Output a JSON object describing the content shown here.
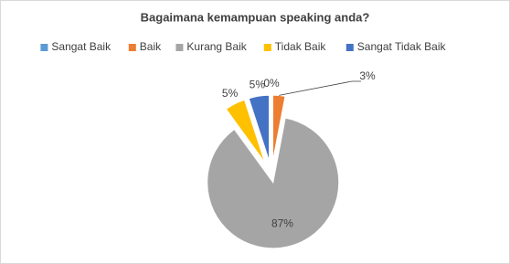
{
  "chart_data": {
    "type": "pie",
    "title": "Bagaimana kemampuan speaking anda?",
    "categories": [
      "Sangat Baik",
      "Baik",
      "Kurang Baik",
      "Tidak Baik",
      "Sangat Tidak Baik"
    ],
    "values": [
      0,
      3,
      87,
      5,
      5
    ],
    "value_labels": [
      "0%",
      "3%",
      "87%",
      "5%",
      "5%"
    ],
    "colors": [
      "#5b9bd5",
      "#ed7d31",
      "#a5a5a5",
      "#ffc000",
      "#4472c4"
    ],
    "legend": "top"
  }
}
